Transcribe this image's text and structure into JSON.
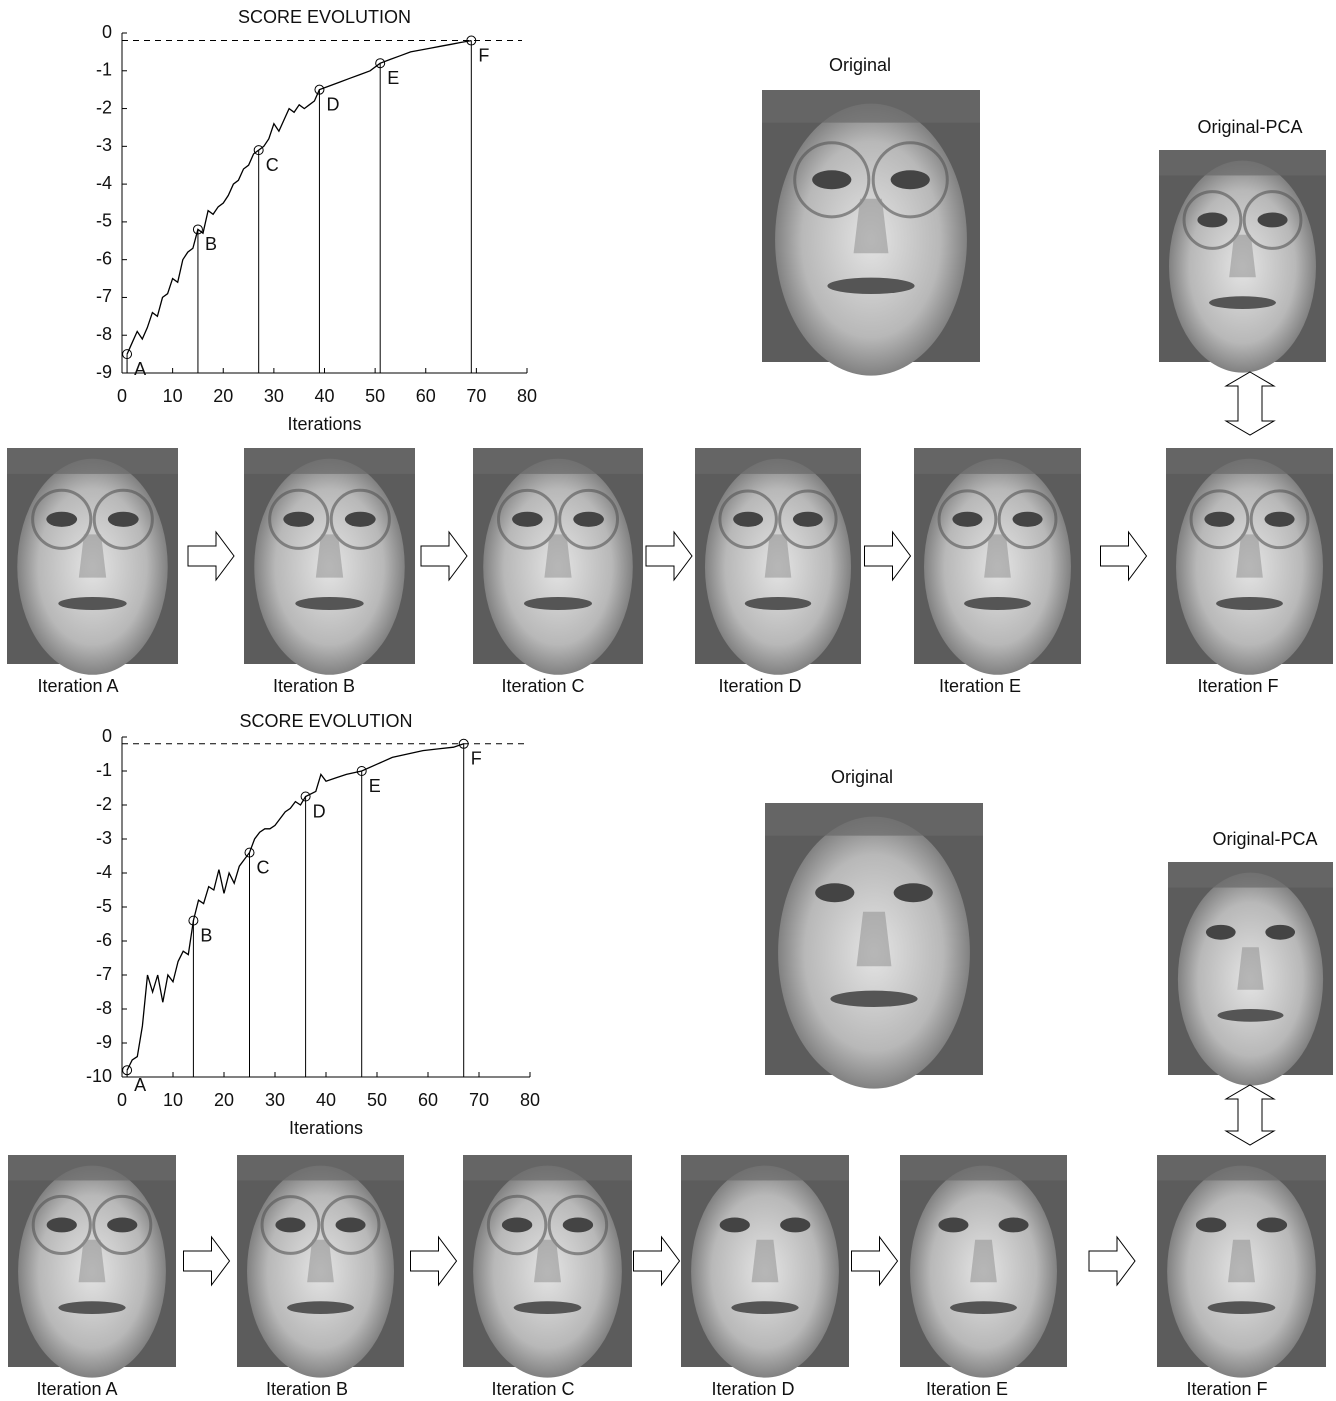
{
  "chart_data": [
    {
      "type": "line",
      "title": "SCORE EVOLUTION",
      "x_label": "Iterations",
      "color": "#000000",
      "xlim": [
        0,
        80
      ],
      "xticks": [
        0,
        10,
        20,
        30,
        40,
        50,
        60,
        70,
        80
      ],
      "ylim": [
        -9,
        0
      ],
      "yticks": [
        -9,
        -8,
        -7,
        -6,
        -5,
        -4,
        -3,
        -2,
        -1,
        0
      ],
      "reference_line": -0.2,
      "x": [
        1,
        2,
        3,
        4,
        5,
        6,
        7,
        8,
        9,
        10,
        11,
        12,
        13,
        14,
        15,
        16,
        17,
        18,
        19,
        20,
        21,
        22,
        23,
        24,
        25,
        26,
        27,
        28,
        29,
        30,
        31,
        32,
        33,
        34,
        35,
        36,
        37,
        38,
        39,
        41,
        43,
        45,
        47,
        49,
        51,
        53,
        55,
        57,
        59,
        61,
        63,
        65,
        67,
        69
      ],
      "values": [
        -8.5,
        -8.2,
        -7.9,
        -8.1,
        -7.8,
        -7.4,
        -7.5,
        -7.0,
        -6.9,
        -6.5,
        -6.6,
        -6.0,
        -5.8,
        -5.7,
        -5.2,
        -5.3,
        -4.7,
        -4.8,
        -4.6,
        -4.5,
        -4.3,
        -4.0,
        -3.9,
        -3.6,
        -3.5,
        -3.2,
        -3.1,
        -3.0,
        -2.8,
        -2.4,
        -2.6,
        -2.3,
        -2.0,
        -2.1,
        -1.9,
        -2.0,
        -1.9,
        -1.8,
        -1.5,
        -1.4,
        -1.3,
        -1.2,
        -1.1,
        -1.0,
        -0.8,
        -0.7,
        -0.6,
        -0.5,
        -0.45,
        -0.4,
        -0.35,
        -0.3,
        -0.25,
        -0.2
      ],
      "markers": [
        {
          "label": "A",
          "x": 1,
          "y": -8.5
        },
        {
          "label": "B",
          "x": 15,
          "y": -5.2
        },
        {
          "label": "C",
          "x": 27,
          "y": -3.1
        },
        {
          "label": "D",
          "x": 39,
          "y": -1.5
        },
        {
          "label": "E",
          "x": 51,
          "y": -0.8
        },
        {
          "label": "F",
          "x": 69,
          "y": -0.2
        }
      ]
    },
    {
      "type": "line",
      "title": "SCORE EVOLUTION",
      "x_label": "Iterations",
      "color": "#000000",
      "xlim": [
        0,
        80
      ],
      "xticks": [
        0,
        10,
        20,
        30,
        40,
        50,
        60,
        70,
        80
      ],
      "ylim": [
        -10,
        0
      ],
      "yticks": [
        -10,
        -9,
        -8,
        -7,
        -6,
        -5,
        -4,
        -3,
        -2,
        -1,
        0
      ],
      "reference_line": -0.2,
      "x": [
        1,
        2,
        3,
        4,
        5,
        6,
        7,
        8,
        9,
        10,
        11,
        12,
        13,
        14,
        15,
        16,
        17,
        18,
        19,
        20,
        21,
        22,
        23,
        24,
        25,
        26,
        27,
        28,
        29,
        30,
        31,
        32,
        33,
        34,
        35,
        36,
        38,
        39,
        40,
        42,
        44,
        47,
        50,
        53,
        56,
        59,
        62,
        65,
        67
      ],
      "values": [
        -9.8,
        -9.5,
        -9.4,
        -8.5,
        -7.0,
        -7.5,
        -7.0,
        -7.8,
        -7.0,
        -7.2,
        -6.6,
        -6.3,
        -6.4,
        -5.4,
        -4.8,
        -4.9,
        -4.4,
        -4.5,
        -3.9,
        -4.6,
        -4.0,
        -4.3,
        -3.8,
        -3.6,
        -3.4,
        -3.0,
        -2.8,
        -2.7,
        -2.7,
        -2.6,
        -2.4,
        -2.2,
        -2.1,
        -1.9,
        -2.0,
        -1.75,
        -1.6,
        -1.1,
        -1.3,
        -1.2,
        -1.1,
        -1.0,
        -0.8,
        -0.6,
        -0.5,
        -0.4,
        -0.35,
        -0.3,
        -0.2
      ],
      "markers": [
        {
          "label": "A",
          "x": 1,
          "y": -9.8
        },
        {
          "label": "B",
          "x": 14,
          "y": -5.4
        },
        {
          "label": "C",
          "x": 25,
          "y": -3.4
        },
        {
          "label": "D",
          "x": 36,
          "y": -1.75
        },
        {
          "label": "E",
          "x": 47,
          "y": -1.0
        },
        {
          "label": "F",
          "x": 67,
          "y": -0.2
        }
      ]
    }
  ],
  "panels": [
    {
      "original": "Original",
      "original_pca": "Original-PCA",
      "iterations": [
        "Iteration A",
        "Iteration B",
        "Iteration C",
        "Iteration D",
        "Iteration E",
        "Iteration F"
      ]
    },
    {
      "original": "Original",
      "original_pca": "Original-PCA",
      "iterations": [
        "Iteration A",
        "Iteration B",
        "Iteration C",
        "Iteration D",
        "Iteration E",
        "Iteration F"
      ]
    }
  ]
}
